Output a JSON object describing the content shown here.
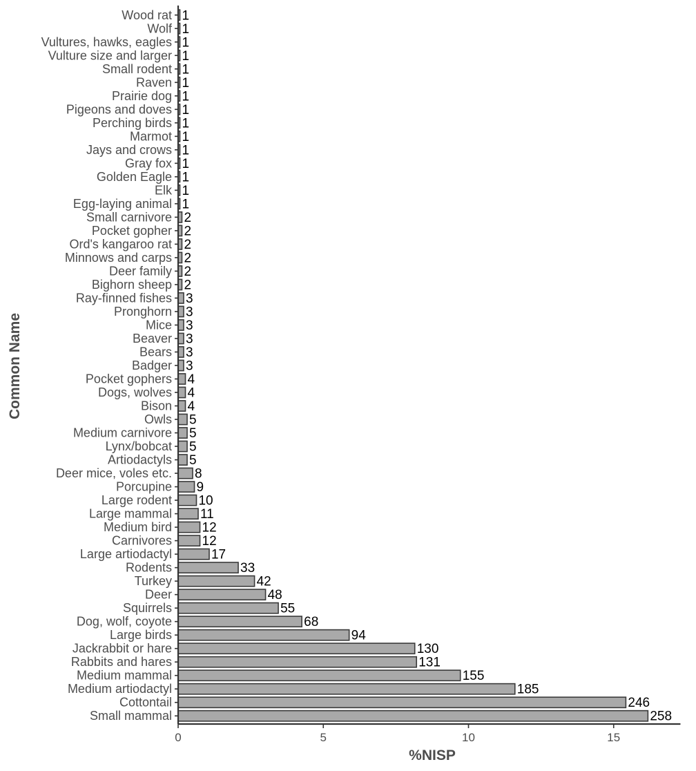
{
  "chart_data": {
    "type": "bar",
    "orientation": "horizontal",
    "xlabel": "%NISP",
    "ylabel": "Common Name",
    "xlim": [
      0,
      17.3
    ],
    "xticks": [
      0,
      5,
      10,
      15
    ],
    "grid": false,
    "colors": {
      "bar_fill": "#a9a9a9",
      "bar_stroke": "#3a3a3a",
      "axis": "#333333"
    },
    "categories": [
      "Wood rat",
      "Wolf",
      "Vultures, hawks, eagles",
      "Vulture size and larger",
      "Small rodent",
      "Raven",
      "Prairie dog",
      "Pigeons and doves",
      "Perching birds",
      "Marmot",
      "Jays and crows",
      "Gray fox",
      "Golden Eagle",
      "Elk",
      "Egg-laying animal",
      "Small carnivore",
      "Pocket gopher",
      "Ord's kangaroo rat",
      "Minnows and carps",
      "Deer family",
      "Bighorn sheep",
      "Ray-finned fishes",
      "Pronghorn",
      "Mice",
      "Beaver",
      "Bears",
      "Badger",
      "Pocket gophers",
      "Dogs, wolves",
      "Bison",
      "Owls",
      "Medium carnivore",
      "Lynx/bobcat",
      "Artiodactyls",
      "Deer mice, voles etc.",
      "Porcupine",
      "Large rodent",
      "Large mammal",
      "Medium bird",
      "Carnivores",
      "Large artiodactyl",
      "Rodents",
      "Turkey",
      "Deer",
      "Squirrels",
      "Dog, wolf, coyote",
      "Large birds",
      "Jackrabbit or hare",
      "Rabbits and hares",
      "Medium mammal",
      "Medium artiodactyl",
      "Cottontail",
      "Small mammal"
    ],
    "values": [
      0.06,
      0.06,
      0.06,
      0.06,
      0.06,
      0.06,
      0.06,
      0.06,
      0.06,
      0.06,
      0.06,
      0.06,
      0.06,
      0.06,
      0.06,
      0.13,
      0.13,
      0.13,
      0.13,
      0.13,
      0.13,
      0.19,
      0.19,
      0.19,
      0.19,
      0.19,
      0.19,
      0.25,
      0.25,
      0.25,
      0.31,
      0.31,
      0.31,
      0.31,
      0.5,
      0.56,
      0.63,
      0.69,
      0.75,
      0.75,
      1.07,
      2.07,
      2.63,
      3.01,
      3.45,
      4.26,
      5.89,
      8.15,
      8.21,
      9.72,
      11.6,
      15.42,
      16.18
    ],
    "data_labels": [
      "1",
      "1",
      "1",
      "1",
      "1",
      "1",
      "1",
      "1",
      "1",
      "1",
      "1",
      "1",
      "1",
      "1",
      "1",
      "2",
      "2",
      "2",
      "2",
      "2",
      "2",
      "3",
      "3",
      "3",
      "3",
      "3",
      "3",
      "4",
      "4",
      "4",
      "5",
      "5",
      "5",
      "5",
      "8",
      "9",
      "10",
      "11",
      "12",
      "12",
      "17",
      "33",
      "42",
      "48",
      "55",
      "68",
      "94",
      "130",
      "131",
      "155",
      "185",
      "246",
      "258"
    ]
  }
}
